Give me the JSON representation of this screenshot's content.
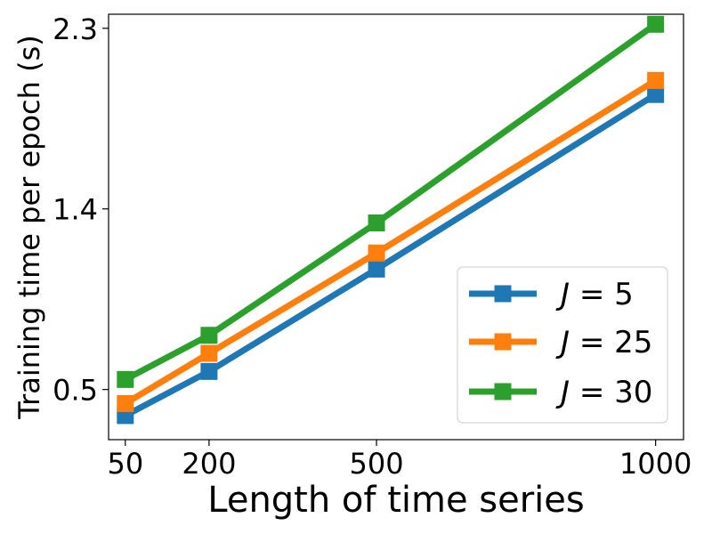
{
  "chart_data": {
    "type": "line",
    "title": "",
    "xlabel": "Length of time series",
    "ylabel": "Training time per epoch (s)",
    "x": [
      50,
      200,
      500,
      1000
    ],
    "x_ticks": [
      "50",
      "200",
      "500",
      "1000"
    ],
    "y_ticks": [
      0.5,
      1.4,
      2.3
    ],
    "y_tick_labels": [
      "0.5",
      "1.4",
      "2.3"
    ],
    "xlim": [
      20,
      1050
    ],
    "ylim": [
      0.25,
      2.37
    ],
    "grid": false,
    "legend_position": "bottom-right",
    "marker": "square",
    "series": [
      {
        "name": "J = 5",
        "legend_var": "J",
        "legend_value": "5",
        "color": "#1f77b4",
        "values": [
          0.37,
          0.59,
          1.1,
          1.97
        ]
      },
      {
        "name": "J = 25",
        "legend_var": "J",
        "legend_value": "25",
        "color": "#ff7f0e",
        "values": [
          0.43,
          0.68,
          1.18,
          2.04
        ]
      },
      {
        "name": "J = 30",
        "legend_var": "J",
        "legend_value": "30",
        "color": "#2ca02c",
        "values": [
          0.55,
          0.77,
          1.33,
          2.32
        ]
      }
    ]
  }
}
